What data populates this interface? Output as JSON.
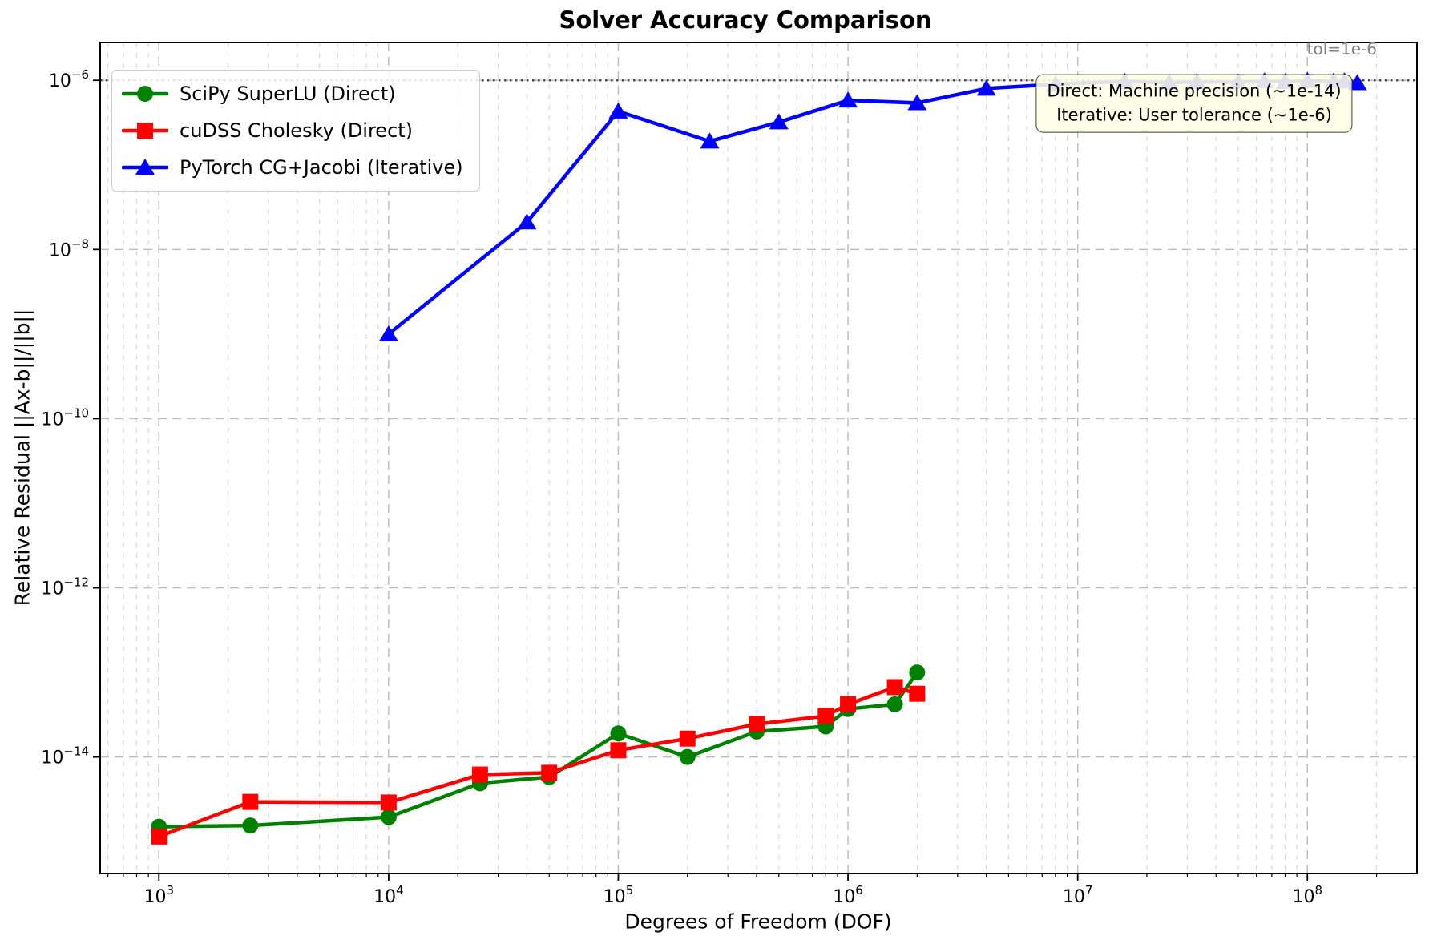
{
  "tol_label": "tol=1e-6",
  "annotation": {
    "line1": "Direct: Machine precision (~1e-14)",
    "line2": "Iterative: User tolerance (~1e-6)"
  },
  "chart_data": {
    "type": "line",
    "title": "Solver Accuracy Comparison",
    "xlabel": "Degrees of Freedom (DOF)",
    "ylabel": "Relative Residual ||Ax-b||/||b||",
    "x_scale": "log",
    "y_scale": "log",
    "xlim": [
      555,
      300000000
    ],
    "ylim": [
      4.2e-16,
      2.8e-06
    ],
    "x_major_ticks_exp": [
      3,
      4,
      5,
      6,
      7,
      8
    ],
    "y_major_ticks_exp": [
      -6,
      -8,
      -10,
      -12,
      -14
    ],
    "grid": true,
    "legend_position": "upper left",
    "tolerance_line": 1e-06,
    "tolerance_line_label": "tol=1e-6",
    "series": [
      {
        "name": "SciPy SuperLU (Direct)",
        "color": "#008000",
        "marker": "circle",
        "x": [
          1000,
          2500,
          10000,
          25000,
          50000,
          100000,
          200000,
          400000,
          800000,
          1000000,
          1600000,
          2000000
        ],
        "y": [
          1.5e-15,
          1.55e-15,
          1.95e-15,
          4.9e-15,
          5.8e-15,
          1.9e-14,
          1e-14,
          2e-14,
          2.3e-14,
          3.7e-14,
          4.2e-14,
          1e-13
        ]
      },
      {
        "name": "cuDSS Cholesky (Direct)",
        "color": "#ff0000",
        "marker": "square",
        "x": [
          1000,
          2500,
          10000,
          25000,
          50000,
          100000,
          200000,
          400000,
          800000,
          1000000,
          1600000,
          2000000
        ],
        "y": [
          1.15e-15,
          2.95e-15,
          2.9e-15,
          6.2e-15,
          6.5e-15,
          1.2e-14,
          1.65e-14,
          2.45e-14,
          3.05e-14,
          4.2e-14,
          6.7e-14,
          5.6e-14
        ]
      },
      {
        "name": "PyTorch CG+Jacobi (Iterative)",
        "color": "#0000ff",
        "marker": "triangle",
        "x": [
          10000,
          40000,
          100000,
          250000,
          500000,
          1000000,
          2000000,
          4000000,
          8000000,
          16000000,
          25000000,
          33000000,
          50000000,
          65000000,
          80000000,
          100000000,
          130000000,
          145000000,
          165000000
        ],
        "y": [
          1e-09,
          2.1e-08,
          4.3e-07,
          1.9e-07,
          3.2e-07,
          5.8e-07,
          5.4e-07,
          8e-07,
          9e-07,
          9.7e-07,
          9.4e-07,
          9.6e-07,
          9.5e-07,
          9.8e-07,
          9.6e-07,
          9.9e-07,
          9.7e-07,
          9.8e-07,
          9.3e-07
        ]
      }
    ]
  }
}
